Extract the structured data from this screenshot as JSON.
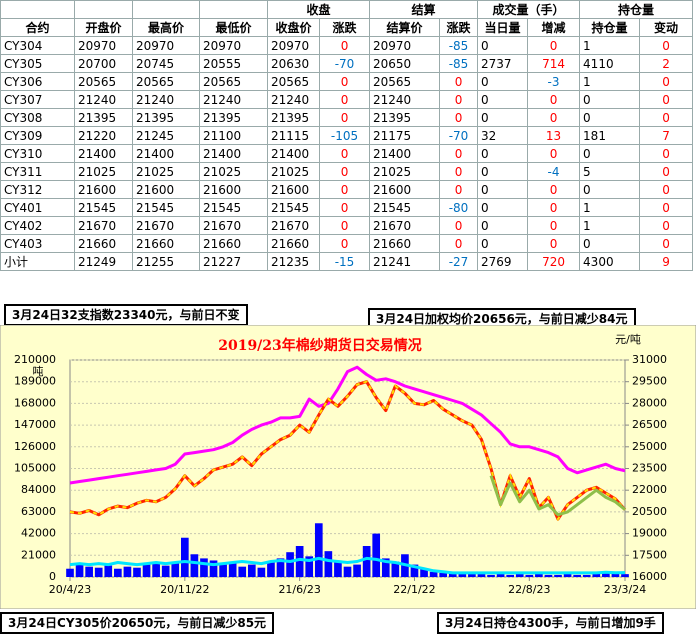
{
  "table": {
    "groups": [
      "收盘",
      "结算",
      "成交量（手）",
      "持仓量"
    ],
    "columns": [
      "合约",
      "开盘价",
      "最高价",
      "最低价",
      "收盘价",
      "涨跌",
      "结算价",
      "涨跌",
      "当日量",
      "增减",
      "持仓量",
      "变动"
    ],
    "rows": [
      [
        "CY304",
        20970,
        20970,
        20970,
        20970,
        0,
        20970,
        -85,
        0,
        0,
        1,
        0
      ],
      [
        "CY305",
        20700,
        20745,
        20555,
        20630,
        -70,
        20650,
        -85,
        2737,
        714,
        4110,
        2
      ],
      [
        "CY306",
        20565,
        20565,
        20565,
        20565,
        0,
        20565,
        0,
        0,
        -3,
        1,
        0
      ],
      [
        "CY307",
        21240,
        21240,
        21240,
        21240,
        0,
        21240,
        0,
        0,
        0,
        0,
        0
      ],
      [
        "CY308",
        21395,
        21395,
        21395,
        21395,
        0,
        21395,
        0,
        0,
        0,
        0,
        0
      ],
      [
        "CY309",
        21220,
        21245,
        21100,
        21115,
        -105,
        21175,
        -70,
        32,
        13,
        181,
        7
      ],
      [
        "CY310",
        21400,
        21400,
        21400,
        21400,
        0,
        21400,
        0,
        0,
        0,
        0,
        0
      ],
      [
        "CY311",
        21025,
        21025,
        21025,
        21025,
        0,
        21025,
        0,
        0,
        -4,
        5,
        0
      ],
      [
        "CY312",
        21600,
        21600,
        21600,
        21600,
        0,
        21600,
        0,
        0,
        0,
        0,
        0
      ],
      [
        "CY401",
        21545,
        21545,
        21545,
        21545,
        0,
        21545,
        -80,
        0,
        0,
        1,
        0
      ],
      [
        "CY402",
        21670,
        21670,
        21670,
        21670,
        0,
        21670,
        0,
        0,
        0,
        1,
        0
      ],
      [
        "CY403",
        21660,
        21660,
        21660,
        21660,
        0,
        21660,
        0,
        0,
        0,
        0,
        0
      ],
      [
        "小计",
        21249,
        21255,
        21227,
        21235,
        -15,
        21241,
        -27,
        2769,
        720,
        4300,
        9
      ]
    ]
  },
  "notes": [
    "3月24日32支指数23340元，与前日不变",
    "3月24日加权均价20656元，与前日减少84元",
    "3月24日CY305价20650元，与前日减少85元",
    "3月24日持仓4300手，与前日增加9手"
  ],
  "chart_data": {
    "type": "combo",
    "title": "2019/23年棉纱期货日交易情况",
    "y_label": "吨",
    "y2_label": "元/吨",
    "categories": [
      "20/4/23",
      null,
      null,
      null,
      null,
      null,
      null,
      null,
      null,
      null,
      null,
      null,
      "20/11/22",
      null,
      null,
      null,
      null,
      null,
      null,
      null,
      null,
      null,
      null,
      null,
      "21/6/23",
      null,
      null,
      null,
      null,
      null,
      null,
      null,
      null,
      null,
      null,
      null,
      "22/1/22",
      null,
      null,
      null,
      null,
      null,
      null,
      null,
      null,
      null,
      null,
      null,
      "22/8/23",
      null,
      null,
      null,
      null,
      null,
      null,
      null,
      null,
      null,
      "23/3/24"
    ],
    "ylim": [
      0,
      210000
    ],
    "yticks": [
      0,
      21000,
      42000,
      63000,
      84000,
      105000,
      126000,
      147000,
      168000,
      189000,
      210000
    ],
    "y2lim": [
      16000,
      31000
    ],
    "y2ticks": [
      16000,
      17500,
      19000,
      20500,
      22000,
      23500,
      25000,
      26500,
      28000,
      29500,
      31000
    ],
    "grid": true,
    "series": [
      {
        "type": "bar",
        "color": "#0000ff",
        "values": [
          8000,
          12000,
          10000,
          9000,
          11000,
          8000,
          10000,
          9000,
          12000,
          14000,
          11000,
          15000,
          38000,
          22000,
          18000,
          16000,
          12000,
          15000,
          10000,
          12000,
          9000,
          14000,
          18000,
          24000,
          30000,
          20000,
          52000,
          25000,
          16000,
          10000,
          12000,
          30000,
          42000,
          18000,
          15000,
          22000,
          12000,
          8000,
          5000,
          4000,
          3000,
          3000,
          4000,
          3000,
          2000,
          3000,
          2000,
          3000,
          2000,
          3000,
          2000,
          2000,
          3000,
          2000,
          2000,
          3000,
          4000,
          3000,
          2769
        ]
      },
      {
        "type": "line",
        "color": "#00e5ff",
        "values": [
          12000,
          13000,
          12000,
          13000,
          12000,
          14000,
          13000,
          12000,
          13000,
          14000,
          13000,
          14000,
          15000,
          14000,
          13000,
          12000,
          13000,
          14000,
          15000,
          14000,
          13000,
          15000,
          16000,
          15000,
          17000,
          16000,
          18000,
          16000,
          15000,
          14000,
          15000,
          18000,
          17000,
          15000,
          14000,
          12000,
          10000,
          8000,
          6000,
          5000,
          4000,
          4000,
          4000,
          4000,
          4000,
          4000,
          4000,
          4000,
          4000,
          4000,
          4000,
          4000,
          4000,
          4000,
          4000,
          4000,
          4500,
          4200,
          4300
        ]
      },
      {
        "type": "line",
        "axis": "y2",
        "color": "#ff00ff",
        "values": [
          22500,
          22600,
          22700,
          22800,
          22900,
          23000,
          23100,
          23200,
          23300,
          23400,
          23500,
          23800,
          24500,
          24600,
          24700,
          24800,
          25000,
          25300,
          25800,
          26200,
          26500,
          26700,
          27000,
          27000,
          27100,
          28300,
          27800,
          28000,
          29000,
          30200,
          30500,
          30000,
          29600,
          29700,
          29500,
          29200,
          29000,
          28800,
          28600,
          28400,
          28200,
          28000,
          27600,
          27200,
          26600,
          26000,
          25200,
          25000,
          25000,
          24800,
          24600,
          24300,
          23500,
          23200,
          23400,
          23600,
          23800,
          23500,
          23340
        ]
      },
      {
        "type": "line",
        "axis": "y2",
        "color": "#ff2200",
        "values": [
          20500,
          20400,
          20600,
          20300,
          20700,
          20900,
          20800,
          21100,
          21300,
          21200,
          21500,
          22100,
          23000,
          22300,
          22800,
          23400,
          23600,
          23800,
          24300,
          23700,
          24500,
          25000,
          25500,
          25800,
          26500,
          26000,
          27200,
          28300,
          27800,
          28500,
          29300,
          29500,
          28400,
          27500,
          29200,
          28700,
          28000,
          27900,
          28200,
          27600,
          27200,
          26800,
          26500,
          25500,
          23500,
          21000,
          23000,
          21500,
          22800,
          20800,
          21500,
          20000,
          21000,
          21500,
          22000,
          22200,
          21800,
          21400,
          20650
        ]
      },
      {
        "type": "line",
        "axis": "y2",
        "color": "#8fbf4a",
        "values": [
          null,
          null,
          null,
          null,
          null,
          null,
          null,
          null,
          null,
          null,
          null,
          null,
          null,
          null,
          null,
          null,
          null,
          null,
          null,
          null,
          null,
          null,
          null,
          null,
          null,
          null,
          null,
          null,
          null,
          null,
          null,
          null,
          null,
          null,
          null,
          null,
          null,
          null,
          null,
          null,
          null,
          null,
          null,
          null,
          23000,
          21000,
          22500,
          21200,
          22000,
          20700,
          21000,
          20300,
          20500,
          21000,
          21500,
          22000,
          21500,
          21200,
          20656
        ]
      }
    ]
  }
}
